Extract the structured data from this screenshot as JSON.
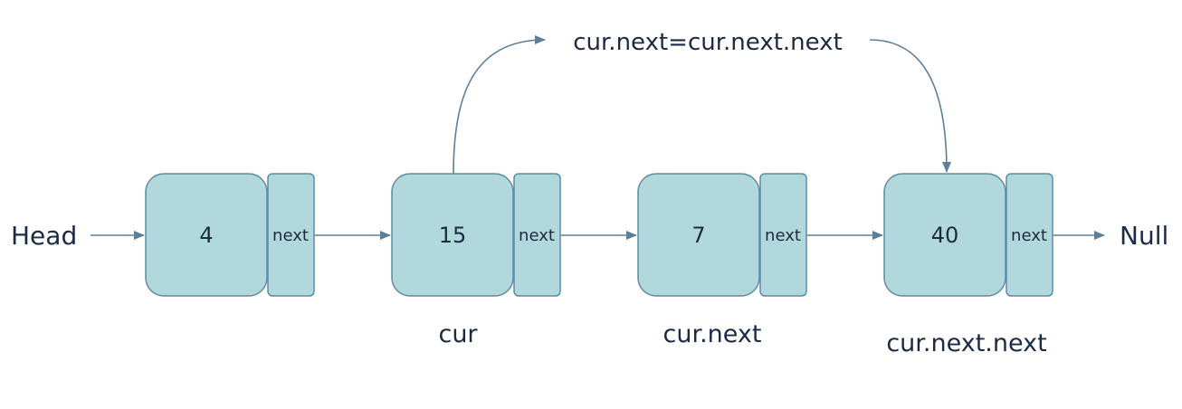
{
  "diagram": {
    "head_label": "Head",
    "null_label": "Null",
    "operation_label": "cur.next=cur.next.next",
    "nodes": [
      {
        "value": "4",
        "next_label": "next",
        "pointer_label": ""
      },
      {
        "value": "15",
        "next_label": "next",
        "pointer_label": "cur"
      },
      {
        "value": "7",
        "next_label": "next",
        "pointer_label": "cur.next"
      },
      {
        "value": "40",
        "next_label": "next",
        "pointer_label": "cur.next.next"
      }
    ],
    "colors": {
      "node_fill": "#b1d9dd",
      "node_stroke": "#5e8ca0",
      "arrow": "#5b7f9a",
      "text": "#1c2a44"
    }
  }
}
